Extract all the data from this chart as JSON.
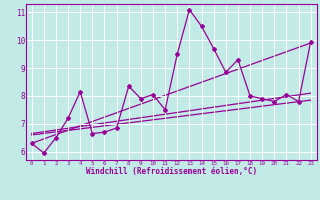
{
  "xlabel": "Windchill (Refroidissement éolien,°C)",
  "xlim": [
    -0.5,
    23.5
  ],
  "ylim": [
    5.7,
    11.3
  ],
  "yticks": [
    6,
    7,
    8,
    9,
    10,
    11
  ],
  "xticks": [
    0,
    1,
    2,
    3,
    4,
    5,
    6,
    7,
    8,
    9,
    10,
    11,
    12,
    13,
    14,
    15,
    16,
    17,
    18,
    19,
    20,
    21,
    22,
    23
  ],
  "bg_color": "#c2eae6",
  "grid_color": "#ffffff",
  "line_color": "#990099",
  "curve_data": [
    6.3,
    5.95,
    6.5,
    7.2,
    8.15,
    6.65,
    6.7,
    6.85,
    8.35,
    7.9,
    8.05,
    7.5,
    9.5,
    11.1,
    10.5,
    9.7,
    8.85,
    9.3,
    8.0,
    7.9,
    7.8,
    8.05,
    7.8,
    9.95
  ],
  "reg1_start": 6.3,
  "reg1_end": 9.9,
  "reg2_start": 6.65,
  "reg2_end": 8.1,
  "reg3_start": 6.6,
  "reg3_end": 7.85
}
